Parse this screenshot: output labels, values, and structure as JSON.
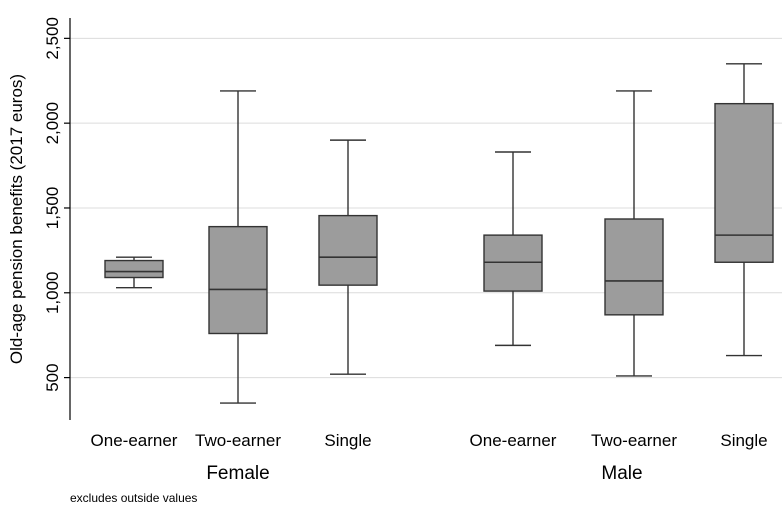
{
  "chart_data": {
    "type": "boxplot",
    "ylabel": "Old-age pension benefits (2017 euros)",
    "yticks": [
      500,
      1000,
      1500,
      2000,
      2500
    ],
    "ytick_labels": [
      "500",
      "1,000",
      "1,500",
      "2,000",
      "2,500"
    ],
    "ylim": [
      250,
      2620
    ],
    "grid": true,
    "note": "excludes outside values",
    "groups": [
      {
        "name": "Female",
        "boxes": [
          {
            "category": "One-earner",
            "whisker_low": 1030,
            "q1": 1090,
            "median": 1125,
            "q3": 1190,
            "whisker_high": 1210
          },
          {
            "category": "Two-earner",
            "whisker_low": 350,
            "q1": 760,
            "median": 1020,
            "q3": 1390,
            "whisker_high": 2190
          },
          {
            "category": "Single",
            "whisker_low": 520,
            "q1": 1045,
            "median": 1210,
            "q3": 1455,
            "whisker_high": 1900
          }
        ]
      },
      {
        "name": "Male",
        "boxes": [
          {
            "category": "One-earner",
            "whisker_low": 690,
            "q1": 1010,
            "median": 1180,
            "q3": 1340,
            "whisker_high": 1830
          },
          {
            "category": "Two-earner",
            "whisker_low": 510,
            "q1": 870,
            "median": 1070,
            "q3": 1435,
            "whisker_high": 2190
          },
          {
            "category": "Single",
            "whisker_low": 630,
            "q1": 1180,
            "median": 1340,
            "q3": 2115,
            "whisker_high": 2350
          }
        ]
      }
    ],
    "colors": {
      "box_fill": "#9c9c9c",
      "stroke": "#333333",
      "grid": "#dcdcdc",
      "axis": "#000000"
    }
  }
}
